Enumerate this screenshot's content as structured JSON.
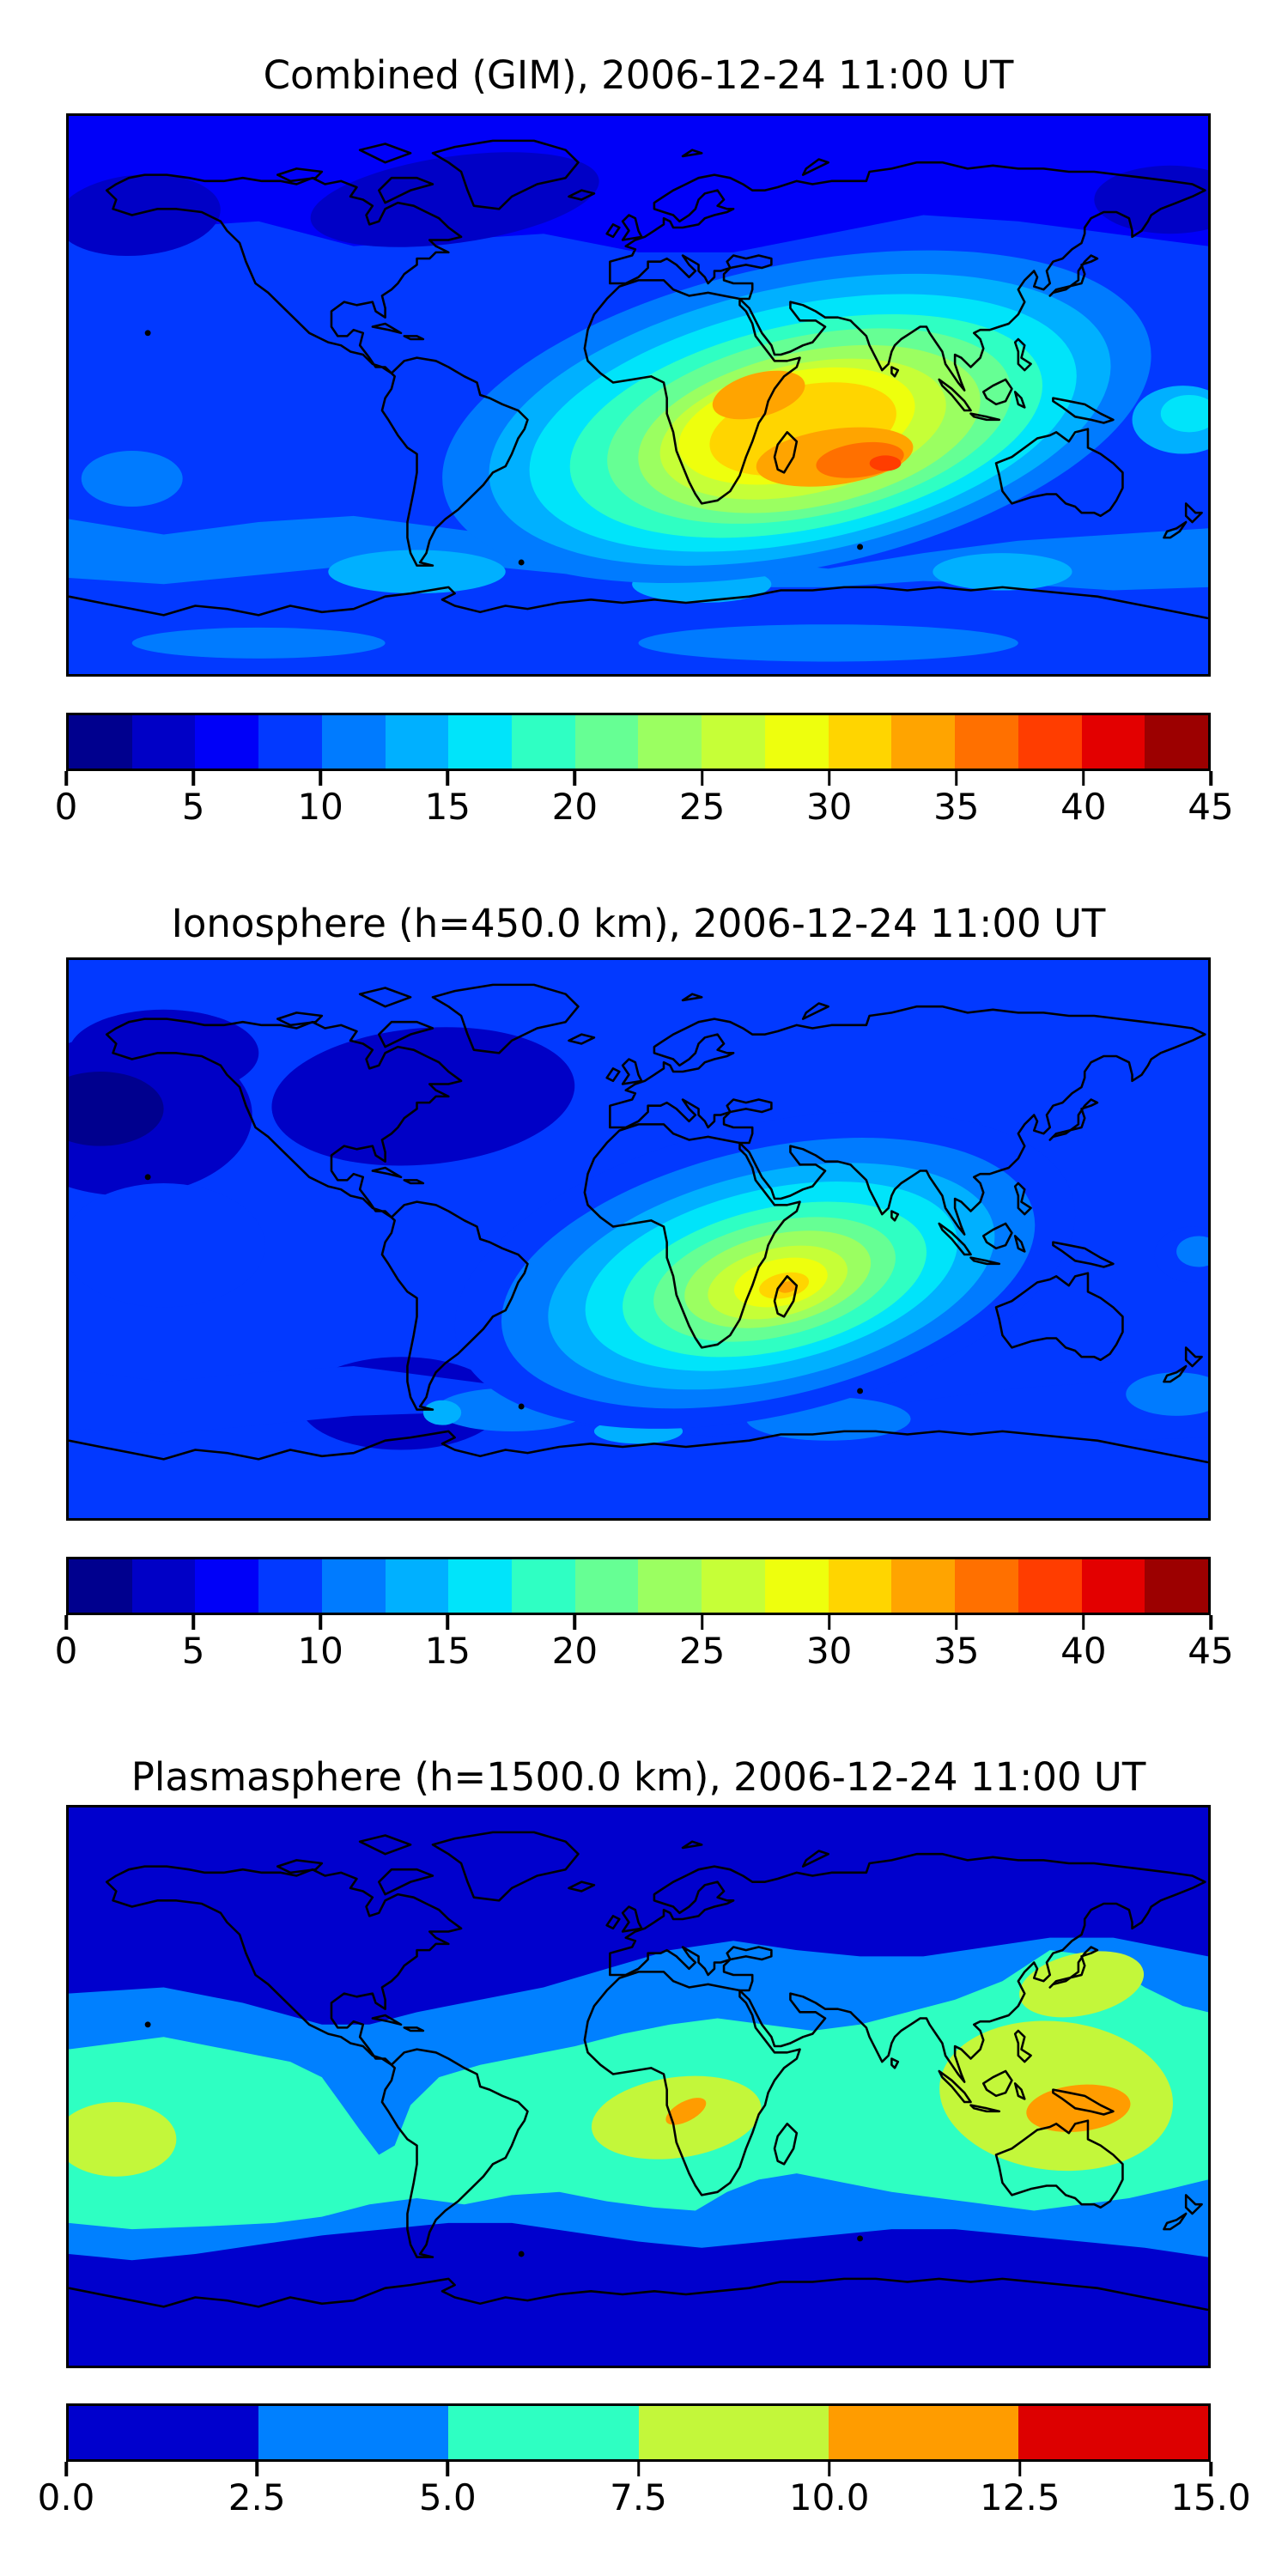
{
  "figure_title": "Global TEC maps figure (3 stacked panels)",
  "chart_data": [
    {
      "type": "heatmap",
      "subtype": "filled-contour world map with coastlines (equirectangular, 180W-180E, 90N-90S)",
      "title": "Combined (GIM), 2006-12-24 11:00 UT",
      "colormap": "jet (discrete filled contours)",
      "vmin": 0,
      "vmax": 45,
      "level_step": 2.5,
      "n_levels": 18,
      "colors": [
        "#00008E",
        "#0000C6",
        "#0000F8",
        "#0239FF",
        "#007BFF",
        "#00B0FF",
        "#00E4FA",
        "#2FFFC3",
        "#66FF94",
        "#9BFF61",
        "#C6FF37",
        "#EEFF0D",
        "#FFD500",
        "#FFA400",
        "#FF7000",
        "#FF3D00",
        "#E30000",
        "#9C0000"
      ],
      "colorbar_tick_labels": [
        "0",
        "5",
        "10",
        "15",
        "20",
        "25",
        "30",
        "35",
        "40",
        "45"
      ],
      "colorbar_orientation": "horizontal",
      "axes_visible": false,
      "grid": false,
      "legend": "none",
      "notable_values": [
        {
          "region": "peak, Indian Ocean east of Madagascar (~80E, 22S)",
          "value_range": "40-42.5"
        },
        {
          "region": "deep orange crest (~55-90E, 17-27S)",
          "value_range": "37.5-40"
        },
        {
          "region": "orange lobes over East Africa / Arabia (~15-65E, 7N-6S)",
          "value_range": "32.5-37.5"
        },
        {
          "region": "yellow band Africa to India (~5-100E)",
          "value_range": "27.5-32.5"
        },
        {
          "region": "green/cyan ring South America to western Pacific",
          "value_range": "15-27.5"
        },
        {
          "region": "northern mid-latitude oceans",
          "value_range": "7.5-10"
        },
        {
          "region": "Arctic Canada / North Atlantic / NE Pacific (darkest)",
          "value_range": "2.5-5"
        },
        {
          "region": "Southern Ocean band",
          "value_range": "10-15"
        }
      ]
    },
    {
      "type": "heatmap",
      "subtype": "filled-contour world map with coastlines (equirectangular, 180W-180E, 90N-90S)",
      "title": "Ionosphere  (h=450.0 km), 2006-12-24 11:00 UT",
      "colormap": "jet (discrete filled contours)",
      "vmin": 0,
      "vmax": 45,
      "level_step": 2.5,
      "n_levels": 18,
      "colors": [
        "#00008E",
        "#0000C6",
        "#0000F8",
        "#0239FF",
        "#007BFF",
        "#00B0FF",
        "#00E4FA",
        "#2FFFC3",
        "#66FF94",
        "#9BFF61",
        "#C6FF37",
        "#EEFF0D",
        "#FFD500",
        "#FFA400",
        "#FF7000",
        "#FF3D00",
        "#E30000",
        "#9C0000"
      ],
      "colorbar_tick_labels": [
        "0",
        "5",
        "10",
        "15",
        "20",
        "25",
        "30",
        "35",
        "40",
        "45"
      ],
      "colorbar_orientation": "horizontal",
      "axes_visible": false,
      "grid": false,
      "legend": "none",
      "notable_values": [
        {
          "region": "peak, small orange spot near northern Madagascar (~47E, 16S)",
          "value_range": "32.5-35"
        },
        {
          "region": "yellow core southwest Indian Ocean / Mozambique Channel",
          "value_range": "27.5-32.5"
        },
        {
          "region": "green/cyan oval Africa to India and SE Asia",
          "value_range": "15-27.5"
        },
        {
          "region": "north Pacific / North America dark patches",
          "value_range": "2.5-5"
        },
        {
          "region": "general northern ocean background",
          "value_range": "5-7.5"
        },
        {
          "region": "Southern Ocean lighter band",
          "value_range": "7.5-12.5"
        }
      ]
    },
    {
      "type": "heatmap",
      "subtype": "filled-contour world map with coastlines (equirectangular, 180W-180E, 90N-90S)",
      "title": "Plasmasphere (h=1500.0 km), 2006-12-24 11:00 UT",
      "colormap": "jet (discrete filled contours)",
      "vmin": 0,
      "vmax": 15,
      "level_step": 2.5,
      "n_levels": 6,
      "colors": [
        "#0000CD",
        "#0080FF",
        "#2EFFC2",
        "#C3F73A",
        "#FF9C00",
        "#DD0000"
      ],
      "colorbar_tick_labels": [
        "0.0",
        "2.5",
        "5.0",
        "7.5",
        "10.0",
        "12.5",
        "15.0"
      ],
      "colorbar_orientation": "horizontal",
      "axes_visible": false,
      "grid": false,
      "legend": "none",
      "notable_values": [
        {
          "region": "large orange blob Indonesia / New Guinea (~125-155E, 0-14S)",
          "value_range": "10-12.5"
        },
        {
          "region": "small orange patch central Africa (~10-22E, 5-11S)",
          "value_range": "10-12.5"
        },
        {
          "region": "yellow-green lobes: central Pacific (left edge), Africa, East Asia-Australia",
          "value_range": "7.5-10"
        },
        {
          "region": "wide turquoise equatorial belt",
          "value_range": "5-7.5"
        },
        {
          "region": "mid-latitude light blue transition bands",
          "value_range": "2.5-5"
        },
        {
          "region": "high northern and southern latitudes",
          "value_range": "0-2.5"
        }
      ]
    }
  ]
}
